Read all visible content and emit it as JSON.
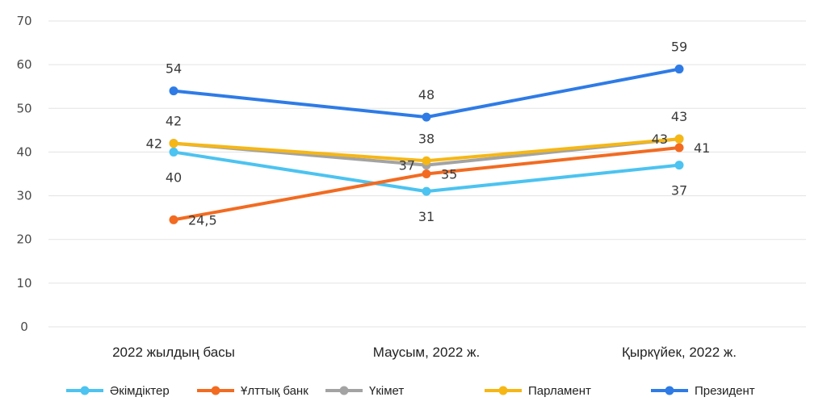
{
  "chart_data": {
    "type": "line",
    "categories": [
      "2022 жылдың басы",
      "Маусым, 2022 ж.",
      "Қыркүйек, 2022 ж."
    ],
    "ylim": [
      0,
      70
    ],
    "yticks": [
      0,
      10,
      20,
      30,
      40,
      50,
      60,
      70
    ],
    "grid": true,
    "legend_position": "bottom",
    "series": [
      {
        "name": "Әкімдіктер",
        "color": "#4cc3f0",
        "values": [
          40,
          31,
          37
        ],
        "labels": [
          "40",
          "31",
          "37"
        ],
        "label_pos": [
          "below",
          "below",
          "below"
        ]
      },
      {
        "name": "Ұлттық банк",
        "color": "#f26b21",
        "values": [
          24.5,
          35,
          41
        ],
        "labels": [
          "24,5",
          "35",
          "41"
        ],
        "label_pos": [
          "right",
          "right",
          "right"
        ]
      },
      {
        "name": "Үкімет",
        "color": "#a3a3a3",
        "values": [
          42,
          37,
          43
        ],
        "labels": [
          "42",
          "37",
          "43"
        ],
        "label_pos": [
          "left",
          "left",
          "left"
        ]
      },
      {
        "name": "Парламент",
        "color": "#f6b715",
        "values": [
          42,
          38,
          43
        ],
        "labels": [
          "42",
          "38",
          "43"
        ],
        "label_pos": [
          "above",
          "above",
          "above"
        ]
      },
      {
        "name": "Президент",
        "color": "#2e7be6",
        "values": [
          54,
          48,
          59
        ],
        "labels": [
          "54",
          "48",
          "59"
        ],
        "label_pos": [
          "above",
          "above",
          "above"
        ]
      }
    ]
  }
}
